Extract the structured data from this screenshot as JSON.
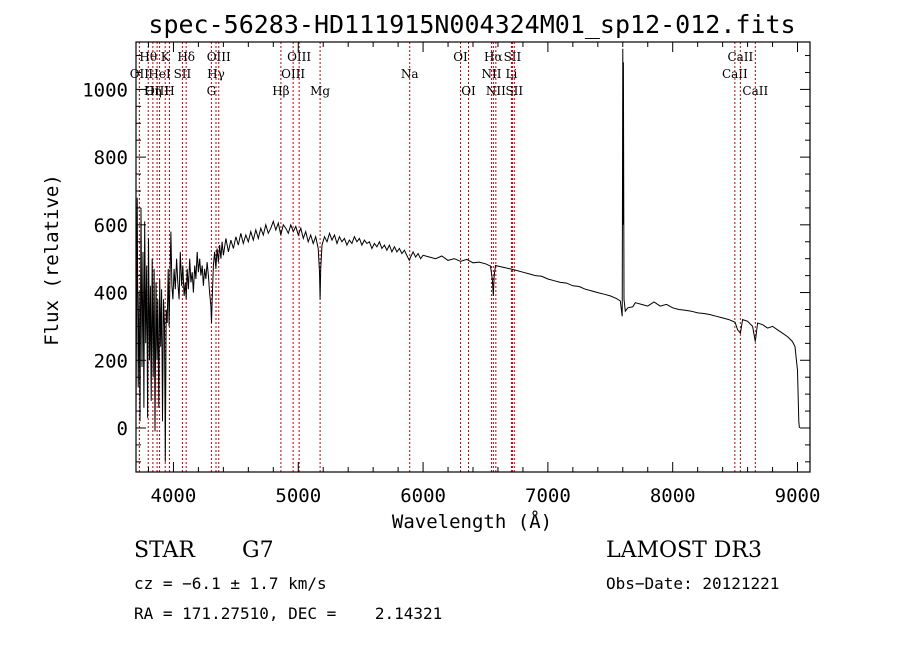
{
  "chart_data": {
    "type": "line",
    "title": "spec-56283-HD111915N004324M01_sp12-012.fits",
    "xlabel": "Wavelength (Å)",
    "ylabel": "Flux (relative)",
    "xlim": [
      3700,
      9100
    ],
    "ylim": [
      -130,
      1140
    ],
    "xticks": [
      4000,
      5000,
      6000,
      7000,
      8000,
      9000
    ],
    "yticks": [
      0,
      200,
      400,
      600,
      800,
      1000
    ],
    "series": [
      {
        "name": "spectrum",
        "points": [
          [
            3700,
            50
          ],
          [
            3710,
            680
          ],
          [
            3718,
            120
          ],
          [
            3725,
            400
          ],
          [
            3732,
            20
          ],
          [
            3740,
            650
          ],
          [
            3748,
            180
          ],
          [
            3756,
            520
          ],
          [
            3763,
            60
          ],
          [
            3770,
            610
          ],
          [
            3778,
            250
          ],
          [
            3786,
            480
          ],
          [
            3793,
            30
          ],
          [
            3800,
            560
          ],
          [
            3808,
            200
          ],
          [
            3815,
            420
          ],
          [
            3822,
            80
          ],
          [
            3830,
            500
          ],
          [
            3838,
            150
          ],
          [
            3845,
            470
          ],
          [
            3852,
            -10
          ],
          [
            3860,
            430
          ],
          [
            3868,
            200
          ],
          [
            3875,
            380
          ],
          [
            3883,
            60
          ],
          [
            3890,
            440
          ],
          [
            3898,
            240
          ],
          [
            3905,
            410
          ],
          [
            3912,
            20
          ],
          [
            3920,
            380
          ],
          [
            3928,
            300
          ],
          [
            3935,
            -100
          ],
          [
            3942,
            350
          ],
          [
            3950,
            310
          ],
          [
            3958,
            470
          ],
          [
            3965,
            300
          ],
          [
            3972,
            430
          ],
          [
            3980,
            580
          ],
          [
            3988,
            420
          ],
          [
            3996,
            380
          ],
          [
            4005,
            470
          ],
          [
            4015,
            410
          ],
          [
            4025,
            500
          ],
          [
            4035,
            430
          ],
          [
            4045,
            380
          ],
          [
            4055,
            520
          ],
          [
            4065,
            420
          ],
          [
            4075,
            480
          ],
          [
            4085,
            390
          ],
          [
            4095,
            430
          ],
          [
            4102,
            380
          ],
          [
            4110,
            470
          ],
          [
            4120,
            410
          ],
          [
            4130,
            500
          ],
          [
            4140,
            430
          ],
          [
            4150,
            460
          ],
          [
            4160,
            400
          ],
          [
            4170,
            480
          ],
          [
            4180,
            440
          ],
          [
            4190,
            520
          ],
          [
            4200,
            460
          ],
          [
            4210,
            500
          ],
          [
            4220,
            450
          ],
          [
            4230,
            480
          ],
          [
            4240,
            420
          ],
          [
            4250,
            470
          ],
          [
            4260,
            440
          ],
          [
            4270,
            490
          ],
          [
            4280,
            450
          ],
          [
            4290,
            400
          ],
          [
            4300,
            360
          ],
          [
            4305,
            310
          ],
          [
            4312,
            400
          ],
          [
            4320,
            480
          ],
          [
            4330,
            520
          ],
          [
            4340,
            470
          ],
          [
            4350,
            530
          ],
          [
            4360,
            490
          ],
          [
            4370,
            540
          ],
          [
            4380,
            500
          ],
          [
            4390,
            550
          ],
          [
            4400,
            510
          ],
          [
            4420,
            560
          ],
          [
            4440,
            520
          ],
          [
            4460,
            555
          ],
          [
            4480,
            530
          ],
          [
            4500,
            565
          ],
          [
            4520,
            540
          ],
          [
            4540,
            575
          ],
          [
            4560,
            545
          ],
          [
            4580,
            570
          ],
          [
            4600,
            550
          ],
          [
            4620,
            580
          ],
          [
            4640,
            555
          ],
          [
            4660,
            585
          ],
          [
            4680,
            560
          ],
          [
            4700,
            590
          ],
          [
            4720,
            570
          ],
          [
            4740,
            600
          ],
          [
            4760,
            575
          ],
          [
            4780,
            590
          ],
          [
            4800,
            610
          ],
          [
            4820,
            585
          ],
          [
            4840,
            605
          ],
          [
            4860,
            570
          ],
          [
            4880,
            600
          ],
          [
            4900,
            590
          ],
          [
            4920,
            575
          ],
          [
            4940,
            600
          ],
          [
            4960,
            580
          ],
          [
            4980,
            595
          ],
          [
            5000,
            570
          ],
          [
            5020,
            590
          ],
          [
            5040,
            560
          ],
          [
            5060,
            580
          ],
          [
            5080,
            550
          ],
          [
            5100,
            570
          ],
          [
            5120,
            545
          ],
          [
            5140,
            565
          ],
          [
            5160,
            530
          ],
          [
            5170,
            460
          ],
          [
            5175,
            380
          ],
          [
            5180,
            470
          ],
          [
            5190,
            540
          ],
          [
            5210,
            565
          ],
          [
            5230,
            550
          ],
          [
            5250,
            575
          ],
          [
            5270,
            555
          ],
          [
            5290,
            570
          ],
          [
            5310,
            545
          ],
          [
            5330,
            565
          ],
          [
            5350,
            550
          ],
          [
            5370,
            560
          ],
          [
            5390,
            540
          ],
          [
            5410,
            555
          ],
          [
            5430,
            545
          ],
          [
            5450,
            565
          ],
          [
            5470,
            550
          ],
          [
            5490,
            560
          ],
          [
            5510,
            540
          ],
          [
            5530,
            555
          ],
          [
            5550,
            545
          ],
          [
            5570,
            550
          ],
          [
            5590,
            530
          ],
          [
            5610,
            545
          ],
          [
            5630,
            535
          ],
          [
            5650,
            550
          ],
          [
            5670,
            530
          ],
          [
            5690,
            540
          ],
          [
            5710,
            525
          ],
          [
            5730,
            540
          ],
          [
            5750,
            520
          ],
          [
            5770,
            535
          ],
          [
            5790,
            520
          ],
          [
            5810,
            530
          ],
          [
            5830,
            515
          ],
          [
            5850,
            525
          ],
          [
            5870,
            510
          ],
          [
            5890,
            495
          ],
          [
            5900,
            505
          ],
          [
            5920,
            520
          ],
          [
            5940,
            505
          ],
          [
            5960,
            515
          ],
          [
            5980,
            500
          ],
          [
            6000,
            510
          ],
          [
            6050,
            505
          ],
          [
            6100,
            500
          ],
          [
            6150,
            508
          ],
          [
            6200,
            495
          ],
          [
            6250,
            500
          ],
          [
            6300,
            492
          ],
          [
            6350,
            498
          ],
          [
            6400,
            488
          ],
          [
            6450,
            490
          ],
          [
            6500,
            485
          ],
          [
            6540,
            478
          ],
          [
            6555,
            440
          ],
          [
            6563,
            390
          ],
          [
            6570,
            450
          ],
          [
            6580,
            480
          ],
          [
            6600,
            478
          ],
          [
            6650,
            474
          ],
          [
            6700,
            470
          ],
          [
            6750,
            465
          ],
          [
            6800,
            460
          ],
          [
            6850,
            455
          ],
          [
            6900,
            450
          ],
          [
            6950,
            448
          ],
          [
            7000,
            440
          ],
          [
            7050,
            435
          ],
          [
            7100,
            430
          ],
          [
            7150,
            428
          ],
          [
            7200,
            420
          ],
          [
            7250,
            418
          ],
          [
            7300,
            410
          ],
          [
            7350,
            405
          ],
          [
            7400,
            400
          ],
          [
            7450,
            395
          ],
          [
            7500,
            390
          ],
          [
            7550,
            382
          ],
          [
            7580,
            375
          ],
          [
            7595,
            330
          ],
          [
            7600,
            1120
          ],
          [
            7602,
            600
          ],
          [
            7605,
            1080
          ],
          [
            7610,
            380
          ],
          [
            7620,
            345
          ],
          [
            7640,
            355
          ],
          [
            7680,
            358
          ],
          [
            7700,
            370
          ],
          [
            7750,
            365
          ],
          [
            7800,
            360
          ],
          [
            7850,
            372
          ],
          [
            7900,
            360
          ],
          [
            7950,
            365
          ],
          [
            8000,
            355
          ],
          [
            8050,
            350
          ],
          [
            8100,
            348
          ],
          [
            8150,
            345
          ],
          [
            8200,
            340
          ],
          [
            8250,
            338
          ],
          [
            8300,
            335
          ],
          [
            8350,
            330
          ],
          [
            8400,
            325
          ],
          [
            8450,
            320
          ],
          [
            8500,
            312
          ],
          [
            8520,
            290
          ],
          [
            8542,
            280
          ],
          [
            8560,
            320
          ],
          [
            8600,
            315
          ],
          [
            8640,
            300
          ],
          [
            8662,
            255
          ],
          [
            8680,
            310
          ],
          [
            8720,
            305
          ],
          [
            8760,
            295
          ],
          [
            8800,
            300
          ],
          [
            8840,
            290
          ],
          [
            8880,
            280
          ],
          [
            8920,
            270
          ],
          [
            8960,
            255
          ],
          [
            8980,
            240
          ],
          [
            9000,
            170
          ],
          [
            9010,
            20
          ],
          [
            9015,
            0
          ]
        ]
      }
    ],
    "spectral_lines": [
      {
        "label": "OII",
        "x": 3727,
        "tier": 1
      },
      {
        "label": "Hθ",
        "x": 3798,
        "tier": 0
      },
      {
        "label": "OIII",
        "x": 3869,
        "tier": 2
      },
      {
        "label": "Hη",
        "x": 3835,
        "tier": 2
      },
      {
        "label": "HeI",
        "x": 3889,
        "tier": 1
      },
      {
        "label": "K",
        "x": 3934,
        "tier": 0
      },
      {
        "label": "H",
        "x": 3968,
        "tier": 2
      },
      {
        "label": "SII",
        "x": 4072,
        "tier": 1
      },
      {
        "label": "Hδ",
        "x": 4102,
        "tier": 0
      },
      {
        "label": "G",
        "x": 4304,
        "tier": 2
      },
      {
        "label": "Hγ",
        "x": 4341,
        "tier": 1
      },
      {
        "label": "OIII",
        "x": 4363,
        "tier": 0
      },
      {
        "label": "Hβ",
        "x": 4861,
        "tier": 2
      },
      {
        "label": "OIII",
        "x": 4959,
        "tier": 1
      },
      {
        "label": "OIII",
        "x": 5007,
        "tier": 0
      },
      {
        "label": "Mg",
        "x": 5175,
        "tier": 2
      },
      {
        "label": "Na",
        "x": 5893,
        "tier": 1
      },
      {
        "label": "OI",
        "x": 6300,
        "tier": 0
      },
      {
        "label": "OI",
        "x": 6364,
        "tier": 2
      },
      {
        "label": "NII",
        "x": 6548,
        "tier": 1
      },
      {
        "label": "Hα",
        "x": 6563,
        "tier": 0
      },
      {
        "label": "NII",
        "x": 6583,
        "tier": 2
      },
      {
        "label": "Li",
        "x": 6708,
        "tier": 1
      },
      {
        "label": "SII",
        "x": 6716,
        "tier": 0
      },
      {
        "label": "SII",
        "x": 6731,
        "tier": 2
      },
      {
        "label": "CaII",
        "x": 8498,
        "tier": 1
      },
      {
        "label": "CaII",
        "x": 8542,
        "tier": 0
      },
      {
        "label": "CaII",
        "x": 8662,
        "tier": 2
      }
    ]
  },
  "info": {
    "object_type": "STAR",
    "subclass": "G7",
    "survey": "LAMOST DR3",
    "cz": "cz = −6.1 ± 1.7 km/s",
    "obs_date": "Obs−Date: 20121221",
    "coords": "RA = 171.27510, DEC =    2.14321"
  },
  "colors": {
    "line_marker": "#c00000",
    "spectrum": "#000000",
    "axes": "#000000"
  }
}
